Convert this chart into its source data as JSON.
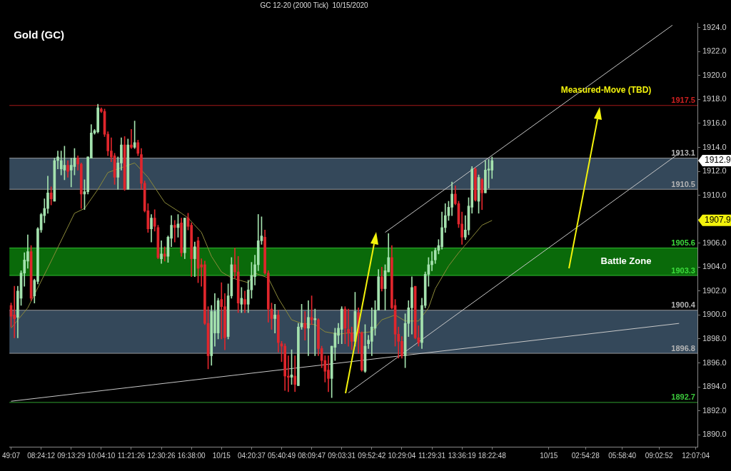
{
  "chart_data": {
    "type": "candlestick",
    "title": "Gold (GC)",
    "subtitle": "GC 12-20 (2000 Tick)  10/15/2020",
    "categories": [
      "49:07",
      null,
      null,
      null,
      null,
      null,
      null,
      null,
      null,
      "08:24:12",
      null,
      null,
      null,
      null,
      null,
      null,
      null,
      null,
      "09:13:29",
      null,
      null,
      null,
      null,
      null,
      null,
      null,
      null,
      "10:04:10",
      null,
      null,
      null,
      null,
      null,
      null,
      null,
      null,
      "11:21:26",
      null,
      null,
      null,
      null,
      null,
      null,
      null,
      null,
      "12:30:26",
      null,
      null,
      null,
      null,
      null,
      null,
      null,
      null,
      "16:38:00",
      null,
      null,
      null,
      null,
      null,
      null,
      null,
      null,
      "10/15",
      null,
      null,
      null,
      null,
      null,
      null,
      null,
      null,
      "04:20:37",
      null,
      null,
      null,
      null,
      null,
      null,
      null,
      null,
      "05:40:49",
      null,
      null,
      null,
      null,
      null,
      null,
      null,
      null,
      "08:09:47",
      null,
      null,
      null,
      null,
      null,
      null,
      null,
      null,
      "09:03:31",
      null,
      null,
      null,
      null,
      null,
      null,
      null,
      null,
      "09:52:42",
      null,
      null,
      null,
      null,
      null,
      null,
      null,
      null,
      "10:29:04",
      null,
      null,
      null,
      null,
      null,
      null,
      null,
      null,
      "11:29:31",
      null,
      null,
      null,
      null,
      null,
      null,
      null,
      null,
      "13:36:19",
      null,
      null,
      null,
      null,
      null,
      null,
      null,
      null,
      "18:22:48",
      null,
      null,
      null,
      null,
      null,
      null,
      null,
      null,
      null,
      null,
      null,
      null,
      null,
      null,
      null,
      null,
      "10/15",
      null,
      null,
      null,
      null,
      null,
      null,
      null,
      null,
      null,
      null,
      "02:54:28",
      null,
      null,
      null,
      null,
      null,
      null,
      null,
      null,
      null,
      null,
      "05:58:40",
      null,
      null,
      null,
      null,
      null,
      null,
      null,
      null,
      null,
      null,
      "09:02:52",
      null,
      null,
      null,
      null,
      null,
      null,
      null,
      null,
      null,
      null,
      "12:07:04"
    ],
    "ohlc": [
      [
        1900.8,
        1901.0,
        1899.0,
        1899.9
      ],
      [
        1900.0,
        1902.4,
        1898.1,
        1899.7
      ],
      [
        1899.8,
        1902.4,
        1898.1,
        1902.0
      ],
      [
        1901.4,
        1903.7,
        1900.8,
        1903.5
      ],
      [
        1903.5,
        1905.2,
        1902.4,
        1904.6
      ],
      [
        1904.5,
        1906.7,
        1903.9,
        1905.3
      ],
      [
        1905.3,
        1905.8,
        1901.2,
        1901.4
      ],
      [
        1901.6,
        1903.0,
        1901.0,
        1902.9
      ],
      [
        1902.8,
        1907.3,
        1902.6,
        1907.2
      ],
      [
        1907.1,
        1908.5,
        1906.9,
        1908.4
      ],
      [
        1908.3,
        1909.7,
        1907.7,
        1908.9
      ],
      [
        1908.9,
        1911.6,
        1908.5,
        1910.2
      ],
      [
        1910.2,
        1910.7,
        1909.2,
        1909.7
      ],
      [
        1909.5,
        1913.1,
        1909.5,
        1912.9
      ],
      [
        1912.9,
        1913.7,
        1912.2,
        1913.2
      ],
      [
        1912.2,
        1913.7,
        1911.7,
        1912.9
      ],
      [
        1912.1,
        1914.1,
        1911.3,
        1912.5
      ],
      [
        1912.5,
        1912.9,
        1911.5,
        1912.0
      ],
      [
        1912.1,
        1913.1,
        1910.7,
        1912.5
      ],
      [
        1912.4,
        1913.9,
        1911.7,
        1913.1
      ],
      [
        1913.1,
        1913.3,
        1912.1,
        1912.6
      ],
      [
        1912.6,
        1912.7,
        1908.9,
        1910.1
      ],
      [
        1910.1,
        1911.3,
        1908.8,
        1910.3
      ],
      [
        1910.3,
        1913.2,
        1910.1,
        1913.2
      ],
      [
        1913.1,
        1915.9,
        1913.1,
        1915.2
      ],
      [
        1915.2,
        1915.5,
        1915.1,
        1915.4
      ],
      [
        1915.3,
        1917.6,
        1915.2,
        1917.3
      ],
      [
        1917.2,
        1917.3,
        1916.9,
        1917.0
      ],
      [
        1917.0,
        1917.2,
        1914.9,
        1915.1
      ],
      [
        1915.1,
        1915.3,
        1913.3,
        1913.7
      ],
      [
        1913.7,
        1914.8,
        1912.8,
        1913.2
      ],
      [
        1913.3,
        1913.5,
        1910.9,
        1911.5
      ],
      [
        1911.5,
        1913.2,
        1910.5,
        1912.7
      ],
      [
        1912.7,
        1914.8,
        1912.1,
        1914.2
      ],
      [
        1914.2,
        1914.9,
        1910.4,
        1910.5
      ],
      [
        1910.5,
        1914.7,
        1910.5,
        1914.2
      ],
      [
        1914.2,
        1915.5,
        1913.9,
        1914.0
      ],
      [
        1914.0,
        1916.2,
        1913.9,
        1914.4
      ],
      [
        1914.4,
        1914.6,
        1913.3,
        1913.5
      ],
      [
        1913.4,
        1913.9,
        1910.5,
        1911.0
      ],
      [
        1911.0,
        1911.2,
        1908.6,
        1908.7
      ],
      [
        1908.7,
        1909.3,
        1906.9,
        1907.2
      ],
      [
        1907.2,
        1908.4,
        1906.1,
        1908.1
      ],
      [
        1908.1,
        1908.8,
        1907.0,
        1907.4
      ],
      [
        1907.3,
        1907.5,
        1904.7,
        1904.8
      ],
      [
        1904.7,
        1906.2,
        1904.3,
        1905.1
      ],
      [
        1905.1,
        1905.7,
        1904.5,
        1904.9
      ],
      [
        1904.9,
        1906.6,
        1904.4,
        1906.5
      ],
      [
        1906.4,
        1908.3,
        1905.7,
        1907.5
      ],
      [
        1907.5,
        1907.9,
        1906.1,
        1907.3
      ],
      [
        1907.3,
        1908.4,
        1906.5,
        1907.6
      ],
      [
        1907.7,
        1908.1,
        1904.9,
        1905.2
      ],
      [
        1905.2,
        1908.1,
        1904.7,
        1908.1
      ],
      [
        1908.1,
        1908.5,
        1907.1,
        1907.4
      ],
      [
        1907.5,
        1907.7,
        1903.2,
        1904.7
      ],
      [
        1904.7,
        1906.1,
        1903.2,
        1905.7
      ],
      [
        1906.2,
        1906.5,
        1902.7,
        1903.9
      ],
      [
        1904.2,
        1904.7,
        1902.4,
        1904.0
      ],
      [
        1904.2,
        1904.5,
        1899.2,
        1899.3
      ],
      [
        1899.3,
        1900.7,
        1895.5,
        1896.6
      ],
      [
        1896.6,
        1900.8,
        1895.8,
        1900.3
      ],
      [
        1898.5,
        1901.8,
        1897.4,
        1900.3
      ],
      [
        1898.5,
        1901.4,
        1898.0,
        1901.2
      ],
      [
        1901.3,
        1902.7,
        1898.0,
        1900.7
      ],
      [
        1900.7,
        1901.8,
        1897.1,
        1898.1
      ],
      [
        1898.2,
        1902.6,
        1898.0,
        1901.6
      ],
      [
        1901.6,
        1904.8,
        1901.4,
        1904.2
      ],
      [
        1904.2,
        1905.6,
        1903.1,
        1903.6
      ],
      [
        1903.6,
        1904.9,
        1900.2,
        1901.0
      ],
      [
        1900.9,
        1902.3,
        1900.2,
        1901.4
      ],
      [
        1901.3,
        1902.0,
        1900.2,
        1900.9
      ],
      [
        1900.9,
        1902.9,
        1900.2,
        1902.1
      ],
      [
        1902.1,
        1904.4,
        1901.4,
        1903.3
      ],
      [
        1903.2,
        1905.0,
        1902.5,
        1904.2
      ],
      [
        1904.2,
        1908.4,
        1903.7,
        1906.2
      ],
      [
        1906.2,
        1908.2,
        1905.9,
        1906.6
      ],
      [
        1906.5,
        1907.1,
        1903.4,
        1903.5
      ],
      [
        1903.5,
        1903.7,
        1899.4,
        1900.5
      ],
      [
        1900.5,
        1901.0,
        1898.8,
        1899.7
      ],
      [
        1899.7,
        1900.9,
        1898.5,
        1900.0
      ],
      [
        1900.0,
        1900.4,
        1896.9,
        1897.7
      ],
      [
        1897.6,
        1897.8,
        1896.1,
        1897.4
      ],
      [
        1897.4,
        1897.6,
        1893.7,
        1894.9
      ],
      [
        1894.9,
        1896.6,
        1893.6,
        1894.8
      ],
      [
        1894.8,
        1897.1,
        1894.2,
        1895.0
      ],
      [
        1894.9,
        1896.6,
        1893.6,
        1894.2
      ],
      [
        1894.1,
        1899.3,
        1894.1,
        1899.0
      ],
      [
        1899.0,
        1900.9,
        1898.8,
        1899.3
      ],
      [
        1899.3,
        1900.3,
        1897.9,
        1898.9
      ],
      [
        1898.9,
        1901.2,
        1896.6,
        1899.8
      ],
      [
        1899.8,
        1901.6,
        1899.2,
        1899.6
      ],
      [
        1899.6,
        1900.5,
        1896.6,
        1899.7
      ],
      [
        1899.6,
        1899.7,
        1896.6,
        1897.2
      ],
      [
        1897.2,
        1897.4,
        1895.6,
        1896.2
      ],
      [
        1896.2,
        1896.6,
        1894.4,
        1895.3
      ],
      [
        1895.4,
        1896.6,
        1893.6,
        1894.7
      ],
      [
        1894.7,
        1897.4,
        1893.1,
        1897.4
      ],
      [
        1897.3,
        1898.9,
        1896.2,
        1898.5
      ],
      [
        1898.3,
        1899.3,
        1897.6,
        1898.9
      ],
      [
        1898.8,
        1900.7,
        1897.6,
        1900.5
      ],
      [
        1900.5,
        1900.7,
        1897.6,
        1898.9
      ],
      [
        1898.8,
        1900.5,
        1897.4,
        1898.5
      ],
      [
        1898.5,
        1899.0,
        1897.1,
        1897.8
      ],
      [
        1897.8,
        1901.9,
        1897.4,
        1900.3
      ],
      [
        1900.2,
        1900.6,
        1896.8,
        1898.5
      ],
      [
        1898.5,
        1898.6,
        1895.3,
        1895.4
      ],
      [
        1895.3,
        1899.2,
        1895.2,
        1897.4
      ],
      [
        1897.6,
        1898.3,
        1897.2,
        1897.9
      ],
      [
        1897.8,
        1900.6,
        1896.6,
        1899.0
      ],
      [
        1898.9,
        1901.2,
        1898.3,
        1900.4
      ],
      [
        1900.4,
        1903.8,
        1900.4,
        1903.2
      ],
      [
        1903.2,
        1904.0,
        1902.0,
        1902.2
      ],
      [
        1902.2,
        1904.2,
        1900.4,
        1903.7
      ],
      [
        1903.6,
        1906.8,
        1903.6,
        1904.8
      ],
      [
        1904.8,
        1905.8,
        1900.5,
        1900.6
      ],
      [
        1900.8,
        1901.3,
        1897.4,
        1898.4
      ],
      [
        1898.4,
        1899.0,
        1896.4,
        1897.8
      ],
      [
        1897.8,
        1898.2,
        1896.4,
        1896.6
      ],
      [
        1896.6,
        1900.1,
        1895.6,
        1899.3
      ],
      [
        1899.3,
        1901.2,
        1898.2,
        1900.6
      ],
      [
        1900.6,
        1903.2,
        1898.4,
        1902.3
      ],
      [
        1902.4,
        1902.4,
        1898.0,
        1898.1
      ],
      [
        1898.1,
        1899.1,
        1897.4,
        1897.7
      ],
      [
        1897.7,
        1901.4,
        1897.2,
        1900.8
      ],
      [
        1900.8,
        1903.6,
        1900.6,
        1903.4
      ],
      [
        1903.4,
        1904.8,
        1902.4,
        1904.2
      ],
      [
        1904.2,
        1905.3,
        1903.7,
        1904.5
      ],
      [
        1904.6,
        1905.6,
        1904.3,
        1905.4
      ],
      [
        1905.4,
        1906.3,
        1905.1,
        1905.8
      ],
      [
        1905.7,
        1908.6,
        1905.5,
        1907.3
      ],
      [
        1907.3,
        1909.3,
        1906.9,
        1908.3
      ],
      [
        1908.3,
        1909.5,
        1907.9,
        1909.0
      ],
      [
        1909.0,
        1911.1,
        1908.3,
        1910.1
      ],
      [
        1910.1,
        1910.8,
        1909.2,
        1909.3
      ],
      [
        1909.3,
        1909.5,
        1907.3,
        1907.6
      ],
      [
        1907.6,
        1908.6,
        1905.9,
        1906.5
      ],
      [
        1906.5,
        1908.3,
        1906.3,
        1907.1
      ],
      [
        1907.1,
        1909.8,
        1906.7,
        1909.1
      ],
      [
        1909.0,
        1912.4,
        1908.5,
        1912.2
      ],
      [
        1912.2,
        1912.3,
        1909.5,
        1909.6
      ],
      [
        1909.5,
        1911.7,
        1908.5,
        1911.5
      ],
      [
        1911.3,
        1911.4,
        1908.8,
        1910.2
      ],
      [
        1910.2,
        1912.9,
        1910.2,
        1912.1
      ],
      [
        1912.1,
        1913.0,
        1910.6,
        1912.2
      ],
      [
        1912.1,
        1913.2,
        1911.4,
        1912.9
      ],
      null,
      null,
      null,
      null,
      null,
      null,
      null,
      null,
      null,
      null,
      null,
      null,
      null,
      null,
      null,
      null,
      null,
      null,
      null,
      null,
      null,
      null,
      null,
      null,
      null,
      null,
      null,
      null,
      null,
      null,
      null,
      null,
      null,
      null,
      null,
      null,
      null,
      null,
      null,
      null,
      null,
      null,
      null,
      null,
      null,
      null,
      null,
      null,
      null,
      null,
      null,
      null,
      null,
      null,
      null,
      null,
      null,
      null,
      null,
      null,
      null
    ],
    "series": [
      {
        "type": "line",
        "color": "#8c8a3a",
        "values": [
          1898.9,
          null,
          null,
          null,
          null,
          1900.6,
          null,
          null,
          null,
          null,
          null,
          null,
          1904.5,
          null,
          null,
          null,
          null,
          null,
          null,
          1908.5,
          null,
          null,
          1908.9,
          null,
          null,
          null,
          1910.5,
          null,
          null,
          1911.9,
          null,
          null,
          null,
          1912.3,
          null,
          null,
          null,
          1912.7,
          null,
          null,
          null,
          1911.5,
          null,
          null,
          null,
          null,
          1909.4,
          null,
          null,
          null,
          null,
          1908.5,
          null,
          1908.1,
          null,
          null,
          null,
          1906.9,
          null,
          null,
          1904.9,
          null,
          null,
          1903.6,
          null,
          null,
          1903.1,
          null,
          null,
          null,
          null,
          1902.7,
          null,
          1903.5,
          null,
          null,
          null,
          1903.1,
          null,
          null,
          1901.4,
          null,
          null,
          null,
          1899.6,
          null,
          null,
          1899.3,
          null,
          null,
          null,
          1899.2,
          null,
          null,
          1898.6,
          null,
          null,
          null,
          1898.4,
          null,
          null,
          1898.5,
          null,
          null,
          1898.5,
          null,
          null,
          null,
          1898.6,
          null,
          null,
          1899.6,
          null,
          null,
          null,
          1900.0,
          null,
          null,
          1899.5,
          null,
          null,
          null,
          1899.5,
          null,
          null,
          1900.6,
          null,
          1902.2,
          null,
          null,
          null,
          1904.1,
          null,
          null,
          1905.2,
          null,
          null,
          null,
          1906.5,
          null,
          null,
          1907.5,
          null,
          null,
          1907.9,
          null,
          null,
          null,
          null,
          null,
          null,
          null,
          null,
          null,
          null,
          null,
          null,
          null,
          null,
          null,
          null,
          null,
          null,
          null,
          null,
          null,
          null,
          null,
          null,
          null,
          null,
          null,
          null,
          null,
          null,
          null,
          null,
          null,
          null,
          null,
          null,
          null,
          null,
          null,
          null,
          null,
          null,
          null,
          null,
          null,
          null,
          null,
          null,
          null,
          null,
          null,
          null,
          null,
          null,
          null,
          null,
          null,
          null,
          null,
          null,
          null
        ]
      },
      {
        "type": "line",
        "color": "#c8c8c8",
        "values": [
          1892.8,
          null,
          null,
          null,
          null,
          null,
          null,
          null,
          null,
          null,
          null,
          null,
          null,
          null,
          null,
          null,
          null,
          null,
          null,
          null,
          null,
          null,
          null,
          null,
          null,
          null,
          null,
          null,
          null,
          null,
          null,
          null,
          null,
          null,
          null,
          null,
          null,
          null,
          null,
          null,
          null,
          null,
          null,
          null,
          null,
          null,
          null,
          null,
          null,
          null,
          null,
          null,
          null,
          null,
          null,
          null,
          null,
          null,
          null,
          null,
          null,
          null,
          null,
          null,
          null,
          null,
          null,
          null,
          null,
          null,
          null,
          null,
          null,
          null,
          null,
          null,
          null,
          null,
          null,
          null,
          null,
          null,
          null,
          null,
          null,
          null,
          null,
          null,
          null,
          null,
          null,
          null,
          null,
          null,
          null,
          null,
          null,
          null,
          null,
          null,
          null,
          null,
          null,
          null,
          null,
          null,
          null,
          null,
          null,
          null,
          null,
          null,
          null,
          null,
          null,
          null,
          null,
          null,
          null,
          null,
          null,
          null,
          null,
          null,
          null,
          null,
          null,
          null,
          null,
          null,
          null,
          null,
          null,
          null,
          null,
          null,
          null,
          null,
          null,
          null,
          null,
          null,
          null,
          null,
          null,
          null,
          null,
          null,
          null,
          null,
          null,
          null,
          null,
          null,
          null,
          null,
          null,
          null,
          null,
          null,
          null,
          null,
          null,
          null,
          null,
          null,
          null,
          null,
          null,
          null,
          null,
          null,
          null,
          null,
          null,
          null,
          null,
          null,
          null,
          null,
          null,
          null,
          null,
          null,
          null,
          null,
          null,
          null,
          null,
          null,
          null,
          null,
          null,
          null,
          null,
          null,
          null,
          null,
          null,
          null,
          1899.3,
          null,
          null,
          null,
          null,
          null
        ]
      },
      {
        "type": "line",
        "color": "#c8c8c8",
        "values": [
          null,
          null,
          null,
          null,
          null,
          null,
          null,
          null,
          null,
          null,
          null,
          null,
          null,
          null,
          null,
          null,
          null,
          null,
          null,
          null,
          null,
          null,
          null,
          null,
          null,
          null,
          null,
          null,
          null,
          null,
          null,
          null,
          null,
          null,
          null,
          null,
          null,
          null,
          null,
          null,
          null,
          null,
          null,
          null,
          null,
          null,
          null,
          null,
          null,
          null,
          null,
          null,
          null,
          null,
          null,
          null,
          null,
          null,
          null,
          null,
          null,
          null,
          null,
          null,
          null,
          null,
          null,
          null,
          null,
          null,
          null,
          null,
          null,
          null,
          null,
          null,
          null,
          null,
          null,
          null,
          null,
          null,
          null,
          null,
          null,
          null,
          null,
          null,
          null,
          null,
          null,
          null,
          null,
          null,
          null,
          null,
          null,
          null,
          null,
          null,
          null,
          null,
          null,
          null,
          null,
          null,
          null,
          null,
          null,
          null,
          null,
          null,
          1906.9,
          null,
          null,
          null,
          null,
          null,
          null,
          null,
          null,
          null,
          null,
          null,
          null,
          null,
          null,
          null,
          null,
          null,
          null,
          null,
          null,
          null,
          null,
          null,
          null,
          null,
          null,
          null,
          null,
          null,
          null,
          null,
          null,
          null,
          null,
          null,
          null,
          null,
          null,
          null,
          null,
          null,
          null,
          null,
          null,
          null,
          null,
          null,
          null,
          null,
          null,
          null,
          null,
          null,
          null,
          null,
          null,
          null,
          null,
          null,
          null,
          null,
          null,
          null,
          null,
          null,
          null,
          null,
          null,
          null,
          null,
          null,
          null,
          null,
          null,
          null,
          null,
          null,
          null,
          null,
          null,
          null,
          null,
          null,
          null,
          null,
          1924.2,
          null,
          null,
          null,
          null,
          null,
          null,
          null
        ]
      },
      {
        "type": "line",
        "color": "#c8c8c8",
        "values": [
          null,
          null,
          null,
          null,
          null,
          null,
          null,
          null,
          null,
          null,
          null,
          null,
          null,
          null,
          null,
          null,
          null,
          null,
          null,
          null,
          null,
          null,
          null,
          null,
          null,
          null,
          null,
          null,
          null,
          null,
          null,
          null,
          null,
          null,
          null,
          null,
          null,
          null,
          null,
          null,
          null,
          null,
          null,
          null,
          null,
          null,
          null,
          null,
          null,
          null,
          null,
          null,
          null,
          null,
          null,
          null,
          null,
          null,
          null,
          null,
          null,
          null,
          null,
          null,
          null,
          null,
          null,
          null,
          null,
          null,
          null,
          null,
          null,
          null,
          null,
          null,
          null,
          null,
          null,
          null,
          null,
          null,
          null,
          null,
          null,
          null,
          null,
          null,
          null,
          null,
          null,
          null,
          null,
          null,
          null,
          null,
          null,
          null,
          null,
          null,
          null,
          1893.5,
          null,
          null,
          null,
          null,
          null,
          null,
          null,
          null,
          null,
          null,
          null,
          null,
          null,
          null,
          null,
          null,
          null,
          null,
          null,
          null,
          null,
          null,
          null,
          null,
          null,
          null,
          null,
          null,
          null,
          null,
          null,
          null,
          null,
          null,
          null,
          null,
          null,
          null,
          null,
          null,
          null,
          null,
          null,
          null,
          null,
          null,
          null,
          null,
          null,
          null,
          null,
          null,
          null,
          null,
          null,
          null,
          null,
          null,
          null,
          null,
          null,
          null,
          null,
          null,
          null,
          null,
          null,
          null,
          null,
          null,
          null,
          null,
          null,
          null,
          null,
          null,
          null,
          null,
          null,
          null,
          null,
          null,
          null,
          null,
          null,
          null,
          null,
          null,
          null,
          null,
          null,
          null,
          null,
          null,
          null,
          null,
          null,
          null,
          1913.5,
          null,
          null,
          null,
          null,
          null
        ]
      }
    ],
    "ylim": [
      1889,
      1924.4
    ],
    "yticks": [
      {
        "value": 1890,
        "label": "1890.0"
      },
      {
        "value": 1892,
        "label": "1892.0"
      },
      {
        "value": 1894,
        "label": "1894.0"
      },
      {
        "value": 1896,
        "label": "1896.0"
      },
      {
        "value": 1898,
        "label": "1898.0"
      },
      {
        "value": 1900,
        "label": "1900.0"
      },
      {
        "value": 1902,
        "label": "1902.0"
      },
      {
        "value": 1904,
        "label": "1904.0"
      },
      {
        "value": 1906,
        "label": "1906.0"
      },
      {
        "value": 1908,
        "label": null
      },
      {
        "value": 1910,
        "label": "1910.0"
      },
      {
        "value": 1912,
        "label": "1912.0"
      },
      {
        "value": 1914,
        "label": "1914.0"
      },
      {
        "value": 1916,
        "label": "1916.0"
      },
      {
        "value": 1918,
        "label": "1918.0"
      },
      {
        "value": 1920,
        "label": "1920.0"
      },
      {
        "value": 1922,
        "label": "1922.0"
      },
      {
        "value": 1924,
        "label": "1924.0"
      }
    ],
    "ref_lines": [
      {
        "axis": "y",
        "value": 1917.5,
        "label": "1917.5",
        "color": "#d02020"
      },
      {
        "axis": "y",
        "value": 1913.1,
        "label": "1913.1",
        "color": "#b4b4b4"
      },
      {
        "axis": "y",
        "value": 1910.5,
        "label": "1910.5",
        "color": "#b4b4b4"
      },
      {
        "axis": "y",
        "value": 1905.6,
        "label": "1905.6",
        "color": "#3cdc3c"
      },
      {
        "axis": "y",
        "value": 1903.3,
        "label": "1903.3",
        "color": "#3cdc3c"
      },
      {
        "axis": "y",
        "value": 1900.4,
        "label": "1900.4",
        "color": "#b4b4b4"
      },
      {
        "axis": "y",
        "value": 1896.8,
        "label": "1896.8",
        "color": "#b4b4b4"
      },
      {
        "axis": "y",
        "value": 1892.7,
        "label": "1892.7",
        "color": "#3cc83c"
      }
    ],
    "bands": [
      {
        "axis": "y",
        "from": 1910.5,
        "to": 1913.1,
        "color": "#34485a"
      },
      {
        "axis": "y",
        "from": 1896.8,
        "to": 1900.4,
        "color": "#34485a"
      },
      {
        "axis": "y",
        "from": 1903.3,
        "to": 1905.6,
        "label": "Battle Zone",
        "color": "#0a6a0a"
      }
    ],
    "annotations": [
      "Measured-Move (TBD)",
      "1912.9",
      "1907.9"
    ],
    "grid": false,
    "legend": false
  }
}
